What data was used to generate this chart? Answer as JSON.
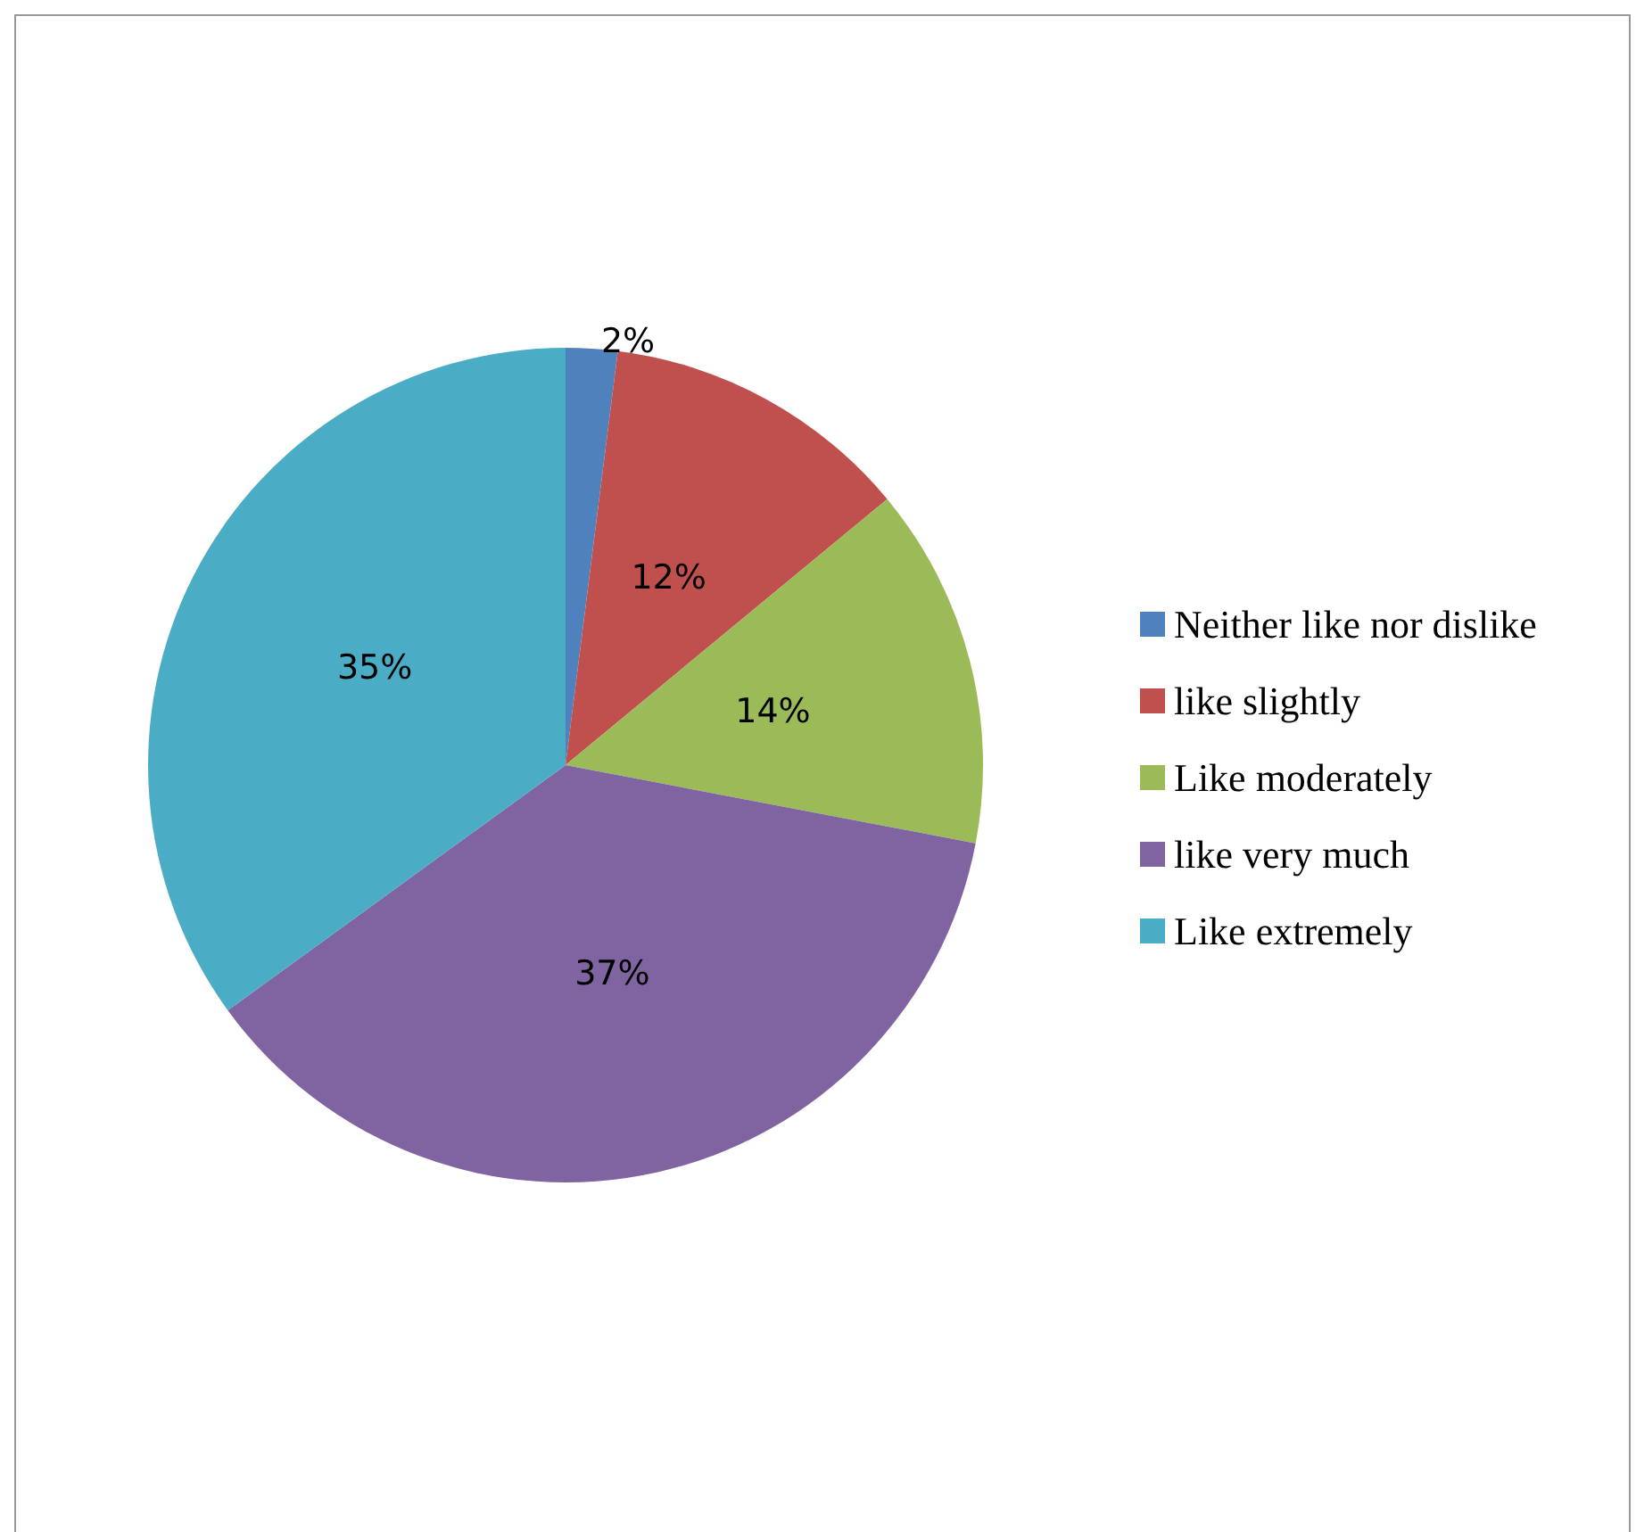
{
  "chart_data": {
    "type": "pie",
    "categories": [
      "Neither like nor dislike",
      "like slightly",
      "Like moderately",
      "like very much",
      "Like extremely"
    ],
    "values": [
      2,
      12,
      14,
      37,
      35
    ],
    "colors": [
      "#4f81bd",
      "#c0504d",
      "#9bbb59",
      "#8064a2",
      "#4bacc6"
    ],
    "value_labels": [
      "2%",
      "12%",
      "14%",
      "37%",
      "35%"
    ],
    "legend": "right"
  }
}
